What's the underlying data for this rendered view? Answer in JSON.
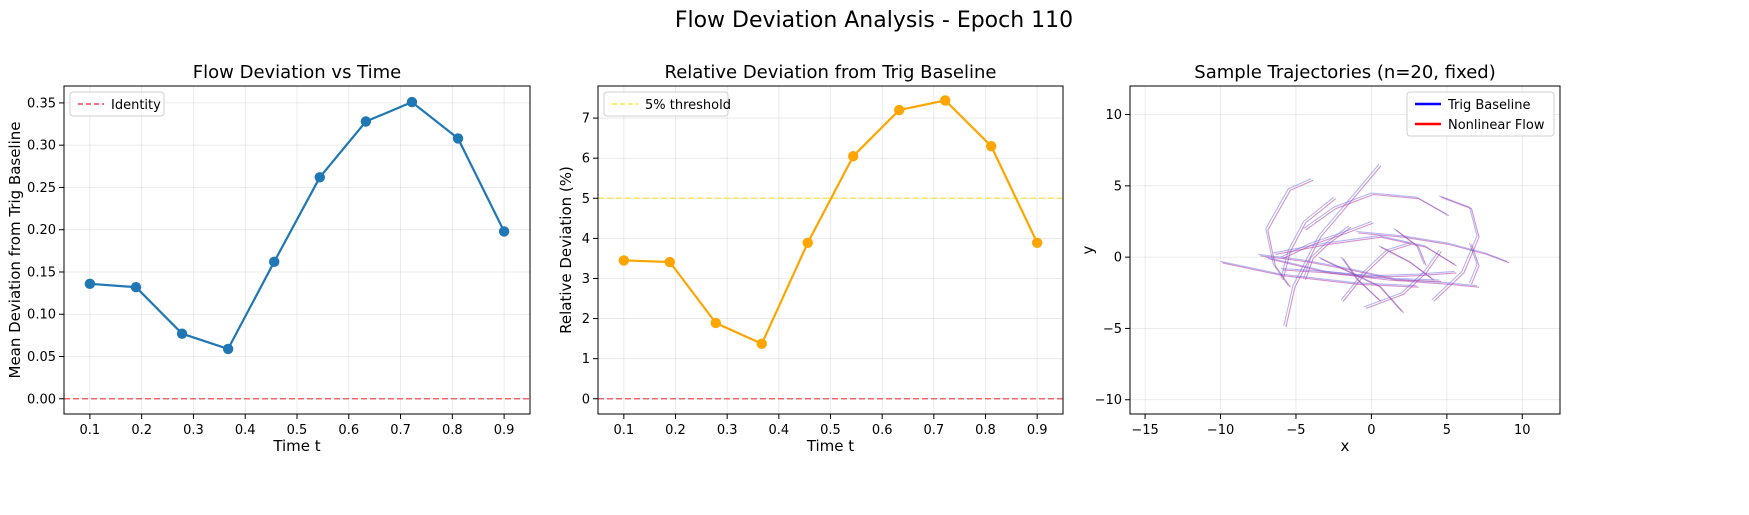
{
  "figure": {
    "suptitle": "Flow Deviation Analysis - Epoch 110"
  },
  "chart_data": [
    {
      "type": "line",
      "title": "Flow Deviation vs Time",
      "xlabel": "Time t",
      "ylabel": "Mean Deviation from Trig Baseline",
      "xlim": [
        0.05,
        0.95
      ],
      "ylim": [
        -0.018,
        0.37
      ],
      "xticks": [
        "0.1",
        "0.2",
        "0.3",
        "0.4",
        "0.5",
        "0.6",
        "0.7",
        "0.8",
        "0.9"
      ],
      "yticks": [
        "0.00",
        "0.05",
        "0.10",
        "0.15",
        "0.20",
        "0.25",
        "0.30",
        "0.35"
      ],
      "grid": true,
      "legend_position": "upper left",
      "series": [
        {
          "color": "#1f77b4",
          "x": [
            0.1,
            0.189,
            0.278,
            0.367,
            0.456,
            0.544,
            0.633,
            0.722,
            0.811,
            0.9
          ],
          "y": [
            0.136,
            0.132,
            0.077,
            0.059,
            0.162,
            0.262,
            0.328,
            0.351,
            0.308,
            0.198
          ]
        }
      ],
      "reference_lines": [
        {
          "name": "Identity",
          "y": 0.0,
          "color": "#e8474a",
          "style": "dashed"
        }
      ]
    },
    {
      "type": "line",
      "title": "Relative Deviation from Trig Baseline",
      "xlabel": "Time t",
      "ylabel": "Relative Deviation (%)",
      "xlim": [
        0.05,
        0.95
      ],
      "ylim": [
        -0.38,
        7.8
      ],
      "xticks": [
        "0.1",
        "0.2",
        "0.3",
        "0.4",
        "0.5",
        "0.6",
        "0.7",
        "0.8",
        "0.9"
      ],
      "yticks": [
        "0",
        "1",
        "2",
        "3",
        "4",
        "5",
        "6",
        "7"
      ],
      "grid": true,
      "legend_position": "upper left",
      "series": [
        {
          "color": "#ffa500",
          "x": [
            0.1,
            0.189,
            0.278,
            0.367,
            0.456,
            0.544,
            0.633,
            0.722,
            0.811,
            0.9
          ],
          "y": [
            3.45,
            3.41,
            1.89,
            1.37,
            3.89,
            6.05,
            7.2,
            7.44,
            6.3,
            3.89
          ]
        }
      ],
      "reference_lines": [
        {
          "name": "5% threshold",
          "y": 5.0,
          "color": "#f5e642",
          "style": "dashed"
        },
        {
          "name": "",
          "y": 0.0,
          "color": "#e8474a",
          "style": "dashed"
        }
      ]
    },
    {
      "type": "line",
      "title": "Sample Trajectories (n=20, fixed)",
      "xlabel": "x",
      "ylabel": "y",
      "xlim": [
        -16,
        12.5
      ],
      "ylim": [
        -11,
        12
      ],
      "xticks": [
        "−15",
        "−10",
        "−5",
        "0",
        "5",
        "10"
      ],
      "yticks": [
        "−10",
        "−5",
        "0",
        "5",
        "10"
      ],
      "grid": true,
      "legend_position": "upper right",
      "legend": [
        {
          "name": "Trig Baseline",
          "color": "#0000ff"
        },
        {
          "name": "Nonlinear Flow",
          "color": "#ff0000"
        }
      ],
      "trajectories": [
        [
          [
            -4.0,
            5.5
          ],
          [
            -5.5,
            4.8
          ],
          [
            -7.0,
            2.0
          ],
          [
            -6.5,
            -0.5
          ],
          [
            -5.5,
            -2.0
          ]
        ],
        [
          [
            -5.8,
            -4.8
          ],
          [
            -5.2,
            -2.0
          ],
          [
            -3.5,
            1.5
          ],
          [
            -1.5,
            4.0
          ],
          [
            0.5,
            6.5
          ]
        ],
        [
          [
            -2.5,
            4.2
          ],
          [
            -4.5,
            2.5
          ],
          [
            -5.5,
            0.5
          ],
          [
            -6.0,
            -1.5
          ]
        ],
        [
          [
            -6.5,
            0.3
          ],
          [
            -3.0,
            1.0
          ],
          [
            0.5,
            1.5
          ],
          [
            3.5,
            0.8
          ],
          [
            5.5,
            -0.5
          ]
        ],
        [
          [
            -7.0,
            0.0
          ],
          [
            -3.0,
            -1.0
          ],
          [
            1.0,
            -1.5
          ],
          [
            5.0,
            -1.8
          ],
          [
            7.0,
            -2.0
          ]
        ],
        [
          [
            -10.0,
            -0.3
          ],
          [
            -6.0,
            -1.2
          ],
          [
            -1.0,
            -1.8
          ],
          [
            3.0,
            -2.0
          ]
        ],
        [
          [
            -4.5,
            2.0
          ],
          [
            -2.5,
            3.5
          ],
          [
            0.0,
            4.5
          ],
          [
            3.0,
            4.2
          ],
          [
            5.0,
            3.0
          ]
        ],
        [
          [
            -1.0,
            1.8
          ],
          [
            2.0,
            1.5
          ],
          [
            5.0,
            1.0
          ],
          [
            7.5,
            0.3
          ],
          [
            9.0,
            -0.3
          ]
        ],
        [
          [
            4.5,
            4.3
          ],
          [
            6.5,
            3.5
          ],
          [
            7.0,
            1.5
          ],
          [
            6.0,
            -1.0
          ],
          [
            4.0,
            -3.0
          ]
        ],
        [
          [
            -2.0,
            -3.0
          ],
          [
            -0.5,
            -1.0
          ],
          [
            1.0,
            0.5
          ],
          [
            2.5,
            1.0
          ]
        ],
        [
          [
            -3.5,
            0.0
          ],
          [
            -1.5,
            -1.0
          ],
          [
            0.5,
            -2.0
          ],
          [
            2.0,
            -3.8
          ]
        ],
        [
          [
            -0.5,
            -3.5
          ],
          [
            2.0,
            -2.5
          ],
          [
            3.5,
            -1.0
          ],
          [
            4.5,
            0.5
          ]
        ],
        [
          [
            -7.5,
            0.2
          ],
          [
            -4.5,
            -0.2
          ],
          [
            -1.5,
            -0.8
          ],
          [
            1.5,
            -1.5
          ],
          [
            4.5,
            -1.6
          ]
        ],
        [
          [
            -1.5,
            2.2
          ],
          [
            -3.0,
            1.0
          ],
          [
            -4.0,
            0.0
          ],
          [
            -4.5,
            -1.5
          ]
        ],
        [
          [
            1.5,
            2.0
          ],
          [
            3.0,
            0.8
          ],
          [
            3.5,
            -0.5
          ]
        ],
        [
          [
            -2.0,
            0.0
          ],
          [
            -1.0,
            -1.5
          ],
          [
            0.5,
            -3.0
          ]
        ],
        [
          [
            0.5,
            0.8
          ],
          [
            2.5,
            -0.3
          ],
          [
            4.0,
            -1.5
          ]
        ],
        [
          [
            6.5,
            1.0
          ],
          [
            7.0,
            -0.5
          ],
          [
            6.5,
            -1.8
          ]
        ],
        [
          [
            -6.0,
            -0.8
          ],
          [
            -3.0,
            -1.0
          ],
          [
            0.0,
            -1.3
          ],
          [
            3.0,
            -1.2
          ],
          [
            5.5,
            -1.0
          ]
        ],
        [
          [
            0.0,
            2.5
          ],
          [
            -2.0,
            1.7
          ],
          [
            -4.0,
            1.0
          ],
          [
            -6.0,
            0.0
          ]
        ]
      ]
    }
  ]
}
